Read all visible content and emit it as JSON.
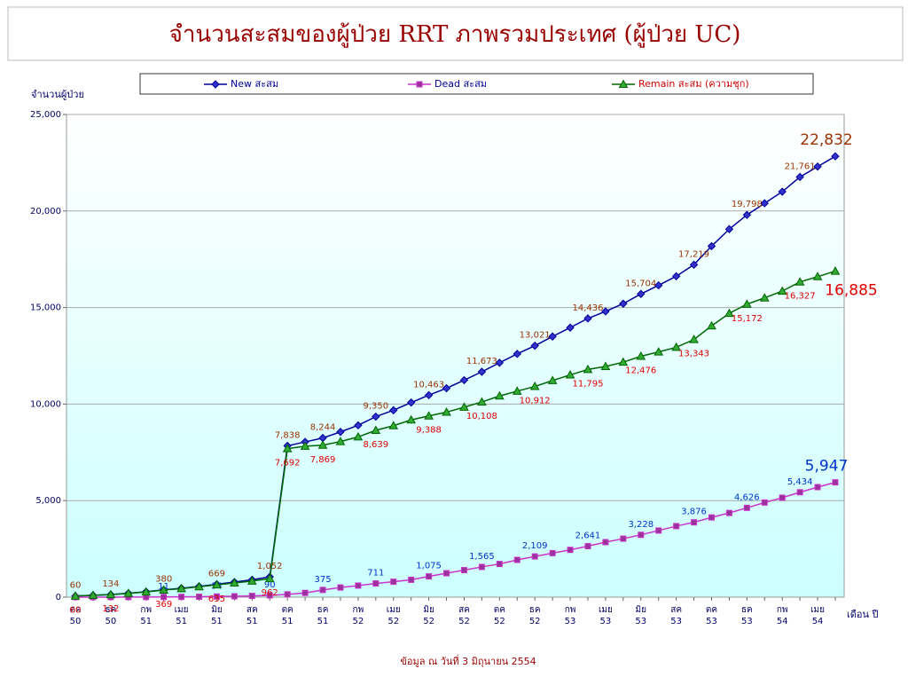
{
  "chart_data": {
    "type": "line",
    "title": "จำนวนสะสมของผู้ป่วย RRT ภาพรวมประเทศ (ผู้ป่วย UC)",
    "y_label": "จำนวนผู้ป่วย",
    "x_label": "เดือน ปี",
    "footnote": "ข้อมูล ณ วันที่ 3 มิถุนายน 2554",
    "grid": true,
    "legend": "top",
    "categories": [
      "ตค 50",
      null,
      "ธค 50",
      null,
      "กพ 51",
      null,
      "เมย 51",
      null,
      "มิย 51",
      null,
      "สค 51",
      null,
      "ตค 51",
      null,
      "ธค 51",
      null,
      "กพ 52",
      null,
      "เมย 52",
      null,
      "มิย 52",
      null,
      "สค 52",
      null,
      "ตค 52",
      null,
      "ธค 52",
      null,
      "กพ 53",
      null,
      "เมย 53",
      null,
      "มิย 53",
      null,
      "สค 53",
      null,
      "ตค 53",
      null,
      "ธค 53",
      null,
      "กพ 54",
      null,
      "เมย 54",
      null
    ],
    "ylim": [
      0,
      25000
    ],
    "yticks": [
      0,
      {
        "value": 5000,
        "label": "5,000"
      },
      {
        "value": 10000,
        "label": "10,000"
      },
      {
        "value": 15000,
        "label": "15,000"
      },
      {
        "value": 20000,
        "label": "20,000"
      },
      {
        "value": 25000,
        "label": "25,000"
      }
    ],
    "series": [
      {
        "name": "New สะสม",
        "color": "#000099",
        "marker": "diamond",
        "label_color": "#993300",
        "values": [
          60,
          100,
          134,
          200,
          280,
          380,
          460,
          560,
          669,
          780,
          900,
          1052,
          7838,
          8040,
          8244,
          8560,
          8900,
          9350,
          9680,
          10080,
          10463,
          10820,
          11240,
          11673,
          12140,
          12600,
          13021,
          13500,
          13960,
          14436,
          14800,
          15200,
          15704,
          16150,
          16620,
          17219,
          18180,
          19060,
          19798,
          20400,
          21000,
          21761,
          22300,
          22832
        ],
        "value_labels": [
          "60",
          null,
          "134",
          null,
          null,
          "380",
          null,
          null,
          "669",
          null,
          null,
          "1,052",
          "7,838",
          null,
          "8,244",
          null,
          null,
          "9,350",
          null,
          null,
          "10,463",
          null,
          null,
          "11,673",
          null,
          null,
          "13,021",
          null,
          null,
          "14,436",
          null,
          null,
          "15,704",
          null,
          null,
          "17,219",
          null,
          null,
          "19,798",
          null,
          null,
          "21,761",
          null,
          "22,832"
        ]
      },
      {
        "name": "Dead สะสม",
        "color": "#cc33cc",
        "marker": "square",
        "label_color": "#0033cc",
        "values": [
          0,
          1,
          2,
          5,
          8,
          11,
          15,
          22,
          34,
          45,
          65,
          90,
          146,
          220,
          375,
          500,
          600,
          711,
          800,
          900,
          1075,
          1240,
          1400,
          1565,
          1720,
          1930,
          2109,
          2280,
          2450,
          2641,
          2850,
          3030,
          3228,
          3450,
          3680,
          3876,
          4130,
          4360,
          4626,
          4900,
          5150,
          5434,
          5700,
          5947
        ],
        "value_labels": [
          null,
          null,
          null,
          null,
          null,
          "11",
          null,
          null,
          "34",
          null,
          null,
          "90",
          null,
          null,
          "375",
          null,
          null,
          "711",
          null,
          null,
          "1,075",
          null,
          null,
          "1,565",
          null,
          null,
          "2,109",
          null,
          null,
          "2,641",
          null,
          null,
          "3,228",
          null,
          null,
          "3,876",
          null,
          null,
          "4,626",
          null,
          null,
          "5,434",
          null,
          "5,947"
        ]
      },
      {
        "name": "Remain สะสม (ความชุก)",
        "color": "#006600",
        "marker": "triangle",
        "label_color": "#e00000",
        "values": [
          60,
          99,
          132,
          195,
          272,
          369,
          445,
          538,
          635,
          735,
          835,
          962,
          7692,
          7820,
          7869,
          8060,
          8300,
          8639,
          8880,
          9180,
          9388,
          9580,
          9840,
          10108,
          10420,
          10670,
          10912,
          11220,
          11510,
          11795,
          11950,
          12170,
          12476,
          12700,
          12940,
          13343,
          14050,
          14700,
          15172,
          15500,
          15850,
          16327,
          16600,
          16885
        ],
        "value_labels": [
          "60",
          null,
          "132",
          null,
          null,
          "369",
          null,
          null,
          "635",
          null,
          null,
          "962",
          "7,692",
          null,
          "7,869",
          null,
          null,
          "8,639",
          null,
          null,
          "9,388",
          null,
          null,
          "10,108",
          null,
          null,
          "10,912",
          null,
          null,
          "11,795",
          null,
          null,
          "12,476",
          null,
          null,
          "13,343",
          null,
          null,
          "15,172",
          null,
          null,
          "16,327",
          null,
          "16,885"
        ]
      }
    ]
  }
}
